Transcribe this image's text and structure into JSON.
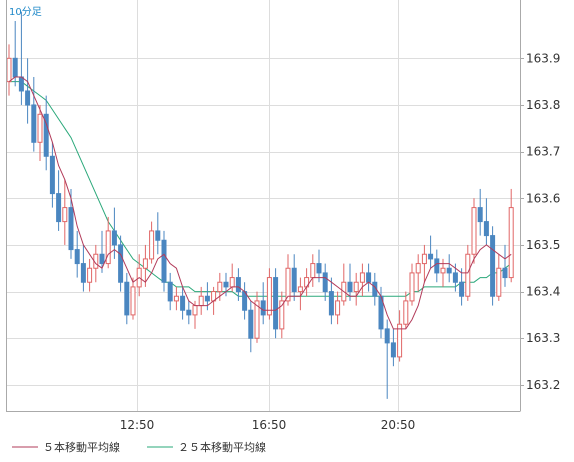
{
  "chart_data": {
    "type": "candlestick",
    "interval_label": "10分足",
    "x_tick_labels": [
      "12:50",
      "16:50",
      "20:50"
    ],
    "y_ticks": [
      163.2,
      163.3,
      163.4,
      163.5,
      163.6,
      163.7,
      163.8,
      163.9
    ],
    "y_tick_labels": [
      "163.2",
      "163.3",
      "163.4",
      "163.5",
      "163.6",
      "163.7",
      "163.8",
      "163.9"
    ],
    "ylim": [
      163.144,
      164.025
    ],
    "grid": true,
    "legend_position": "bottom-left",
    "colors": {
      "up": "#e06666",
      "down": "#4a86c0",
      "ma5": "#b23b5a",
      "ma25": "#2aa87a",
      "grid": "#dddddd",
      "axis": "#aaaaaa"
    },
    "series": [
      {
        "name": "５本移動平均線",
        "type": "line",
        "color": "#b23b5a"
      },
      {
        "name": "２５本移動平均線",
        "type": "line",
        "color": "#2aa87a"
      }
    ],
    "candles": [
      [
        163.85,
        163.93,
        163.82,
        163.9
      ],
      [
        163.9,
        163.98,
        163.84,
        163.86
      ],
      [
        163.86,
        164.0,
        163.8,
        163.83
      ],
      [
        163.83,
        163.9,
        163.76,
        163.8
      ],
      [
        163.8,
        163.86,
        163.7,
        163.72
      ],
      [
        163.72,
        163.8,
        163.68,
        163.78
      ],
      [
        163.78,
        163.82,
        163.66,
        163.69
      ],
      [
        163.69,
        163.72,
        163.58,
        163.61
      ],
      [
        163.61,
        163.66,
        163.53,
        163.55
      ],
      [
        163.55,
        163.64,
        163.5,
        163.58
      ],
      [
        163.58,
        163.62,
        163.47,
        163.49
      ],
      [
        163.49,
        163.53,
        163.43,
        163.46
      ],
      [
        163.46,
        163.5,
        163.4,
        163.42
      ],
      [
        163.42,
        163.47,
        163.4,
        163.45
      ],
      [
        163.45,
        163.5,
        163.42,
        163.48
      ],
      [
        163.48,
        163.53,
        163.44,
        163.46
      ],
      [
        163.46,
        163.56,
        163.45,
        163.53
      ],
      [
        163.53,
        163.58,
        163.47,
        163.5
      ],
      [
        163.5,
        163.52,
        163.4,
        163.42
      ],
      [
        163.42,
        163.44,
        163.33,
        163.35
      ],
      [
        163.35,
        163.43,
        163.34,
        163.41
      ],
      [
        163.41,
        163.48,
        163.39,
        163.45
      ],
      [
        163.45,
        163.5,
        163.41,
        163.47
      ],
      [
        163.47,
        163.55,
        163.46,
        163.53
      ],
      [
        163.53,
        163.57,
        163.48,
        163.51
      ],
      [
        163.51,
        163.53,
        163.4,
        163.42
      ],
      [
        163.42,
        163.44,
        163.36,
        163.38
      ],
      [
        163.38,
        163.41,
        163.36,
        163.39
      ],
      [
        163.39,
        163.41,
        163.34,
        163.36
      ],
      [
        163.36,
        163.38,
        163.33,
        163.35
      ],
      [
        163.35,
        163.38,
        163.32,
        163.37
      ],
      [
        163.37,
        163.41,
        163.35,
        163.39
      ],
      [
        163.39,
        163.42,
        163.36,
        163.38
      ],
      [
        163.38,
        163.41,
        163.35,
        163.4
      ],
      [
        163.4,
        163.44,
        163.38,
        163.42
      ],
      [
        163.42,
        163.44,
        163.39,
        163.41
      ],
      [
        163.41,
        163.46,
        163.4,
        163.43
      ],
      [
        163.43,
        163.45,
        163.38,
        163.4
      ],
      [
        163.4,
        163.42,
        163.34,
        163.36
      ],
      [
        163.36,
        163.38,
        163.27,
        163.3
      ],
      [
        163.3,
        163.4,
        163.29,
        163.38
      ],
      [
        163.38,
        163.42,
        163.33,
        163.35
      ],
      [
        163.35,
        163.45,
        163.34,
        163.43
      ],
      [
        163.43,
        163.45,
        163.3,
        163.32
      ],
      [
        163.32,
        163.4,
        163.3,
        163.38
      ],
      [
        163.38,
        163.48,
        163.37,
        163.45
      ],
      [
        163.45,
        163.48,
        163.38,
        163.4
      ],
      [
        163.4,
        163.43,
        163.36,
        163.41
      ],
      [
        163.41,
        163.45,
        163.39,
        163.43
      ],
      [
        163.43,
        163.48,
        163.41,
        163.46
      ],
      [
        163.46,
        163.49,
        163.42,
        163.44
      ],
      [
        163.44,
        163.46,
        163.38,
        163.4
      ],
      [
        163.4,
        163.43,
        163.33,
        163.35
      ],
      [
        163.35,
        163.4,
        163.33,
        163.38
      ],
      [
        163.38,
        163.46,
        163.37,
        163.42
      ],
      [
        163.42,
        163.46,
        163.38,
        163.4
      ],
      [
        163.4,
        163.44,
        163.37,
        163.42
      ],
      [
        163.42,
        163.46,
        163.39,
        163.44
      ],
      [
        163.44,
        163.46,
        163.4,
        163.42
      ],
      [
        163.42,
        163.44,
        163.37,
        163.39
      ],
      [
        163.39,
        163.41,
        163.3,
        163.32
      ],
      [
        163.32,
        163.34,
        163.17,
        163.29
      ],
      [
        163.29,
        163.32,
        163.24,
        163.26
      ],
      [
        163.26,
        163.36,
        163.25,
        163.33
      ],
      [
        163.33,
        163.4,
        163.32,
        163.38
      ],
      [
        163.38,
        163.46,
        163.37,
        163.44
      ],
      [
        163.44,
        163.48,
        163.4,
        163.46
      ],
      [
        163.46,
        163.5,
        163.42,
        163.48
      ],
      [
        163.48,
        163.52,
        163.45,
        163.47
      ],
      [
        163.47,
        163.49,
        163.42,
        163.44
      ],
      [
        163.44,
        163.47,
        163.41,
        163.45
      ],
      [
        163.45,
        163.48,
        163.42,
        163.44
      ],
      [
        163.44,
        163.46,
        163.4,
        163.42
      ],
      [
        163.42,
        163.45,
        163.37,
        163.39
      ],
      [
        163.39,
        163.5,
        163.38,
        163.48
      ],
      [
        163.48,
        163.6,
        163.46,
        163.58
      ],
      [
        163.58,
        163.62,
        163.52,
        163.55
      ],
      [
        163.55,
        163.6,
        163.5,
        163.52
      ],
      [
        163.52,
        163.54,
        163.37,
        163.39
      ],
      [
        163.39,
        163.48,
        163.38,
        163.45
      ],
      [
        163.45,
        163.5,
        163.41,
        163.43
      ],
      [
        163.43,
        163.62,
        163.42,
        163.58
      ]
    ],
    "ma5": [
      163.85,
      163.86,
      163.86,
      163.85,
      163.82,
      163.79,
      163.76,
      163.72,
      163.67,
      163.64,
      163.6,
      163.54,
      163.5,
      163.48,
      163.46,
      163.45,
      163.48,
      163.49,
      163.48,
      163.45,
      163.42,
      163.43,
      163.42,
      163.44,
      163.47,
      163.48,
      163.46,
      163.45,
      163.41,
      163.38,
      163.37,
      163.37,
      163.37,
      163.38,
      163.39,
      163.4,
      163.41,
      163.41,
      163.4,
      163.38,
      163.37,
      163.36,
      163.36,
      163.36,
      163.37,
      163.39,
      163.39,
      163.39,
      163.41,
      163.43,
      163.43,
      163.43,
      163.42,
      163.41,
      163.4,
      163.39,
      163.39,
      163.41,
      163.42,
      163.41,
      163.39,
      163.35,
      163.32,
      163.32,
      163.32,
      163.34,
      163.37,
      163.42,
      163.45,
      163.46,
      163.46,
      163.46,
      163.45,
      163.44,
      163.44,
      163.47,
      163.49,
      163.5,
      163.49,
      163.48,
      163.47,
      163.48
    ],
    "ma25": [
      163.85,
      163.85,
      163.85,
      163.84,
      163.83,
      163.82,
      163.81,
      163.79,
      163.77,
      163.75,
      163.73,
      163.7,
      163.67,
      163.64,
      163.61,
      163.58,
      163.55,
      163.53,
      163.51,
      163.49,
      163.47,
      163.46,
      163.45,
      163.44,
      163.43,
      163.42,
      163.42,
      163.41,
      163.41,
      163.41,
      163.4,
      163.4,
      163.4,
      163.4,
      163.4,
      163.4,
      163.4,
      163.39,
      163.39,
      163.39,
      163.39,
      163.39,
      163.39,
      163.39,
      163.39,
      163.39,
      163.39,
      163.39,
      163.39,
      163.39,
      163.39,
      163.39,
      163.39,
      163.39,
      163.39,
      163.39,
      163.39,
      163.39,
      163.39,
      163.39,
      163.39,
      163.39,
      163.39,
      163.39,
      163.39,
      163.4,
      163.4,
      163.41,
      163.41,
      163.41,
      163.41,
      163.41,
      163.41,
      163.42,
      163.42,
      163.42,
      163.43,
      163.43,
      163.44,
      163.44,
      163.45,
      163.46
    ]
  }
}
